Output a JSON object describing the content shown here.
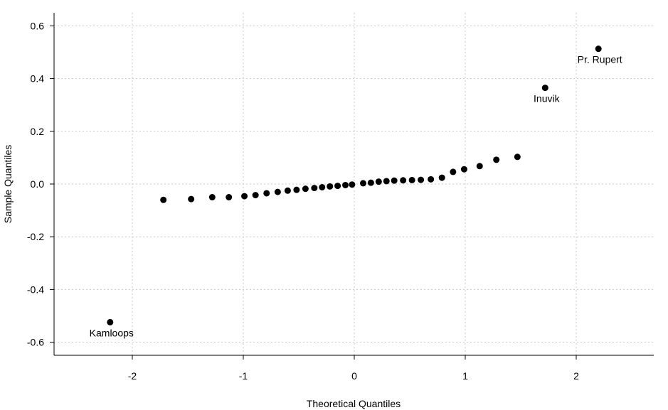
{
  "chart_data": {
    "type": "scatter",
    "title": "",
    "xlabel": "Theoretical Quantiles",
    "ylabel": "Sample Quantiles",
    "xlim": [
      -2.65,
      2.65
    ],
    "ylim": [
      -0.65,
      0.65
    ],
    "xticks": [
      -2,
      -1,
      0,
      1,
      2
    ],
    "yticks": [
      -0.6,
      -0.4,
      -0.2,
      0.0,
      0.2,
      0.4,
      0.6
    ],
    "xtick_labels": [
      "-2",
      "-1",
      "0",
      "1",
      "2"
    ],
    "ytick_labels": [
      "-0.6",
      "-0.4",
      "-0.2",
      "0.0",
      "0.2",
      "0.4",
      "0.6"
    ],
    "grid": true,
    "marker_color": "#000000",
    "points": [
      {
        "x": -2.2,
        "y": -0.524
      },
      {
        "x": -1.72,
        "y": -0.06
      },
      {
        "x": -1.47,
        "y": -0.057
      },
      {
        "x": -1.28,
        "y": -0.05
      },
      {
        "x": -1.13,
        "y": -0.05
      },
      {
        "x": -0.99,
        "y": -0.046
      },
      {
        "x": -0.89,
        "y": -0.042
      },
      {
        "x": -0.79,
        "y": -0.035
      },
      {
        "x": -0.69,
        "y": -0.03
      },
      {
        "x": -0.6,
        "y": -0.025
      },
      {
        "x": -0.52,
        "y": -0.022
      },
      {
        "x": -0.44,
        "y": -0.018
      },
      {
        "x": -0.36,
        "y": -0.015
      },
      {
        "x": -0.29,
        "y": -0.012
      },
      {
        "x": -0.22,
        "y": -0.009
      },
      {
        "x": -0.15,
        "y": -0.007
      },
      {
        "x": -0.08,
        "y": -0.004
      },
      {
        "x": -0.02,
        "y": -0.002
      },
      {
        "x": 0.08,
        "y": 0.003
      },
      {
        "x": 0.15,
        "y": 0.005
      },
      {
        "x": 0.22,
        "y": 0.009
      },
      {
        "x": 0.29,
        "y": 0.011
      },
      {
        "x": 0.36,
        "y": 0.013
      },
      {
        "x": 0.44,
        "y": 0.014
      },
      {
        "x": 0.52,
        "y": 0.015
      },
      {
        "x": 0.6,
        "y": 0.016
      },
      {
        "x": 0.69,
        "y": 0.018
      },
      {
        "x": 0.79,
        "y": 0.024
      },
      {
        "x": 0.89,
        "y": 0.046
      },
      {
        "x": 0.99,
        "y": 0.056
      },
      {
        "x": 1.13,
        "y": 0.068
      },
      {
        "x": 1.28,
        "y": 0.092
      },
      {
        "x": 1.47,
        "y": 0.103
      },
      {
        "x": 1.72,
        "y": 0.365
      },
      {
        "x": 2.2,
        "y": 0.513
      }
    ],
    "annotations": [
      {
        "text": "Kamloops",
        "x": -2.2,
        "y": -0.524
      },
      {
        "text": "Inuvik",
        "x": 1.72,
        "y": 0.365
      },
      {
        "text": "Pr. Rupert",
        "x": 2.2,
        "y": 0.513
      }
    ]
  }
}
